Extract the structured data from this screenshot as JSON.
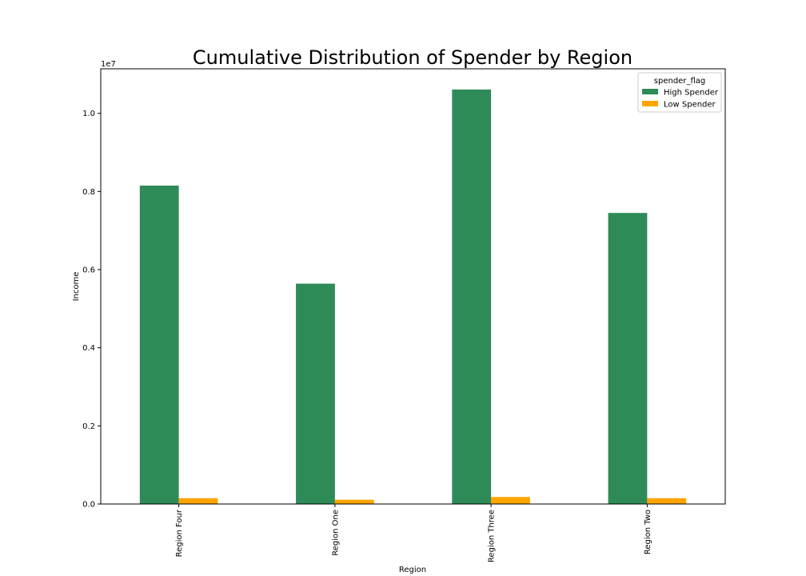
{
  "chart_data": {
    "type": "bar",
    "title": "Cumulative Distribution of Spender by Region",
    "xlabel": "Region",
    "ylabel": "Income",
    "offset_text": "1e7",
    "categories": [
      "Region Four",
      "Region One",
      "Region Three",
      "Region Two"
    ],
    "series": [
      {
        "name": "High Spender",
        "values": [
          8150000,
          5640000,
          10610000,
          7450000
        ],
        "color": "#2e8b57"
      },
      {
        "name": "Low Spender",
        "values": [
          150000,
          110000,
          180000,
          150000
        ],
        "color": "#ffa500"
      }
    ],
    "yticks": [
      0,
      2000000,
      4000000,
      6000000,
      8000000,
      10000000
    ],
    "ytick_labels": [
      "0.0",
      "0.2",
      "0.4",
      "0.6",
      "0.8",
      "1.0"
    ],
    "ylim": [
      0,
      11140000
    ],
    "legend": {
      "title": "spender_flag",
      "placement": "top-right"
    },
    "grid": false
  }
}
